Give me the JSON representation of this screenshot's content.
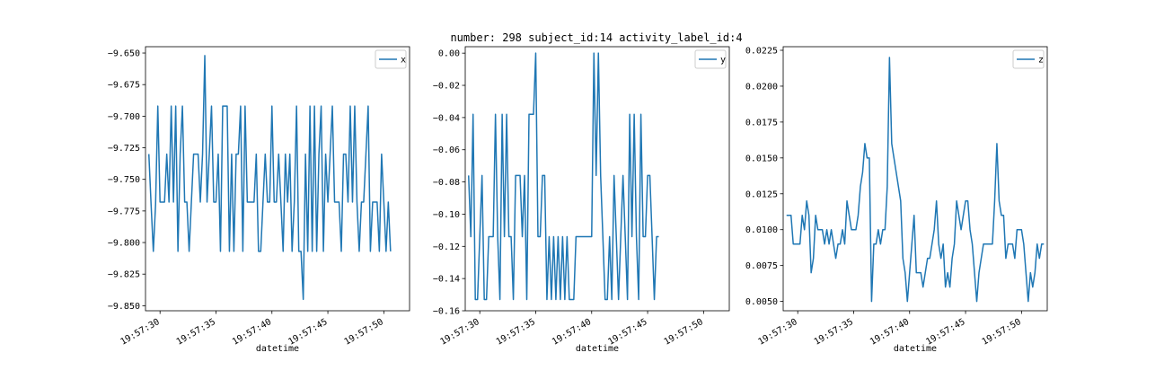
{
  "figure": {
    "title": "number: 298 subject_id:14 activity_label_id:4"
  },
  "chart_data": [
    {
      "type": "line",
      "xlabel": "datetime",
      "ylabel": "",
      "xlim": [
        28.7,
        52.3
      ],
      "ylim": [
        -9.854,
        -9.645
      ],
      "xticks": [
        30,
        35,
        40,
        45,
        50
      ],
      "xtick_labels": [
        "19:57:30",
        "19:57:35",
        "19:57:40",
        "19:57:45",
        "19:57:50"
      ],
      "yticks": [
        -9.85,
        -9.825,
        -9.8,
        -9.775,
        -9.75,
        -9.725,
        -9.7,
        -9.675,
        -9.65
      ],
      "ytick_labels": [
        "−9.850",
        "−9.825",
        "−9.800",
        "−9.775",
        "−9.750",
        "−9.725",
        "−9.700",
        "−9.675",
        "−9.650"
      ],
      "legend": "top-right",
      "color": "#1f77b4",
      "series": [
        {
          "name": "x",
          "x_start": 29.0,
          "x_step": 0.2,
          "values": [
            -9.73,
            -9.77,
            -9.807,
            -9.77,
            -9.692,
            -9.768,
            -9.768,
            -9.768,
            -9.73,
            -9.768,
            -9.692,
            -9.768,
            -9.692,
            -9.807,
            -9.73,
            -9.692,
            -9.768,
            -9.768,
            -9.807,
            -9.768,
            -9.73,
            -9.73,
            -9.73,
            -9.768,
            -9.73,
            -9.652,
            -9.768,
            -9.73,
            -9.692,
            -9.768,
            -9.768,
            -9.73,
            -9.807,
            -9.692,
            -9.692,
            -9.692,
            -9.807,
            -9.73,
            -9.807,
            -9.73,
            -9.73,
            -9.692,
            -9.807,
            -9.692,
            -9.768,
            -9.768,
            -9.768,
            -9.768,
            -9.73,
            -9.807,
            -9.807,
            -9.768,
            -9.73,
            -9.768,
            -9.768,
            -9.692,
            -9.768,
            -9.768,
            -9.73,
            -9.768,
            -9.807,
            -9.73,
            -9.768,
            -9.73,
            -9.807,
            -9.768,
            -9.692,
            -9.807,
            -9.807,
            -9.845,
            -9.73,
            -9.807,
            -9.692,
            -9.807,
            -9.692,
            -9.807,
            -9.73,
            -9.692,
            -9.807,
            -9.73,
            -9.768,
            -9.73,
            -9.692,
            -9.768,
            -9.768,
            -9.768,
            -9.807,
            -9.73,
            -9.73,
            -9.768,
            -9.692,
            -9.768,
            -9.692,
            -9.768,
            -9.807,
            -9.768,
            -9.768,
            -9.73,
            -9.692,
            -9.807,
            -9.768,
            -9.768,
            -9.768,
            -9.807,
            -9.73,
            -9.768,
            -9.807,
            -9.768,
            -9.807
          ]
        }
      ]
    },
    {
      "type": "line",
      "xlabel": "datetime",
      "ylabel": "",
      "xlim": [
        28.7,
        52.3
      ],
      "ylim": [
        -0.16,
        0.004
      ],
      "xticks": [
        30,
        35,
        40,
        45,
        50
      ],
      "xtick_labels": [
        "19:57:30",
        "19:57:35",
        "19:57:40",
        "19:57:45",
        "19:57:50"
      ],
      "yticks": [
        -0.16,
        -0.14,
        -0.12,
        -0.1,
        -0.08,
        -0.06,
        -0.04,
        -0.02,
        0.0
      ],
      "ytick_labels": [
        "−0.16",
        "−0.14",
        "−0.12",
        "−0.10",
        "−0.08",
        "−0.06",
        "−0.04",
        "−0.02",
        "0.00"
      ],
      "legend": "top-right",
      "color": "#1f77b4",
      "series": [
        {
          "name": "y",
          "x_start": 29.0,
          "x_step": 0.2,
          "values": [
            -0.076,
            -0.114,
            -0.038,
            -0.153,
            -0.153,
            -0.114,
            -0.076,
            -0.153,
            -0.153,
            -0.114,
            -0.114,
            -0.114,
            -0.038,
            -0.114,
            -0.153,
            -0.038,
            -0.114,
            -0.038,
            -0.114,
            -0.114,
            -0.153,
            -0.076,
            -0.076,
            -0.076,
            -0.114,
            -0.076,
            -0.153,
            -0.038,
            -0.038,
            -0.038,
            0.0,
            -0.114,
            -0.114,
            -0.076,
            -0.076,
            -0.153,
            -0.114,
            -0.153,
            -0.114,
            -0.153,
            -0.114,
            -0.153,
            -0.114,
            -0.153,
            -0.114,
            -0.153,
            -0.153,
            -0.153,
            -0.114,
            -0.114,
            -0.114,
            -0.114,
            -0.114,
            -0.114,
            -0.114,
            -0.114,
            0.0,
            -0.076,
            0.0,
            -0.076,
            -0.114,
            -0.153,
            -0.153,
            -0.114,
            -0.153,
            -0.076,
            -0.114,
            -0.153,
            -0.114,
            -0.076,
            -0.114,
            -0.153,
            -0.038,
            -0.114,
            -0.038,
            -0.114,
            -0.153,
            -0.038,
            -0.114,
            -0.114,
            -0.076,
            -0.076,
            -0.114,
            -0.153,
            -0.114,
            -0.114
          ]
        }
      ]
    },
    {
      "type": "line",
      "xlabel": "datetime",
      "ylabel": "",
      "xlim": [
        28.7,
        52.3
      ],
      "ylim": [
        0.00435,
        0.02275
      ],
      "xticks": [
        30,
        35,
        40,
        45,
        50
      ],
      "xtick_labels": [
        "19:57:30",
        "19:57:35",
        "19:57:40",
        "19:57:45",
        "19:57:50"
      ],
      "yticks": [
        0.005,
        0.0075,
        0.01,
        0.0125,
        0.015,
        0.0175,
        0.02,
        0.0225
      ],
      "ytick_labels": [
        "0.0050",
        "0.0075",
        "0.0100",
        "0.0125",
        "0.0150",
        "0.0175",
        "0.0200",
        "0.0225"
      ],
      "legend": "top-right",
      "color": "#1f77b4",
      "series": [
        {
          "name": "z",
          "x_start": 29.0,
          "x_step": 0.2,
          "values": [
            0.011,
            0.011,
            0.011,
            0.009,
            0.009,
            0.009,
            0.009,
            0.011,
            0.01,
            0.012,
            0.011,
            0.007,
            0.008,
            0.011,
            0.01,
            0.01,
            0.01,
            0.009,
            0.01,
            0.009,
            0.01,
            0.009,
            0.008,
            0.009,
            0.009,
            0.01,
            0.009,
            0.012,
            0.011,
            0.01,
            0.01,
            0.01,
            0.011,
            0.013,
            0.014,
            0.016,
            0.015,
            0.015,
            0.005,
            0.009,
            0.009,
            0.01,
            0.009,
            0.01,
            0.01,
            0.013,
            0.022,
            0.016,
            0.015,
            0.014,
            0.013,
            0.012,
            0.008,
            0.007,
            0.005,
            0.007,
            0.009,
            0.011,
            0.007,
            0.007,
            0.007,
            0.006,
            0.007,
            0.008,
            0.008,
            0.009,
            0.01,
            0.012,
            0.009,
            0.008,
            0.009,
            0.006,
            0.007,
            0.006,
            0.008,
            0.009,
            0.012,
            0.011,
            0.01,
            0.011,
            0.012,
            0.012,
            0.01,
            0.009,
            0.007,
            0.005,
            0.007,
            0.008,
            0.009,
            0.009,
            0.009,
            0.009,
            0.009,
            0.012,
            0.016,
            0.012,
            0.011,
            0.011,
            0.008,
            0.009,
            0.009,
            0.009,
            0.008,
            0.01,
            0.01,
            0.01,
            0.009,
            0.007,
            0.005,
            0.007,
            0.006,
            0.007,
            0.009,
            0.008,
            0.009,
            0.009
          ]
        }
      ]
    }
  ]
}
